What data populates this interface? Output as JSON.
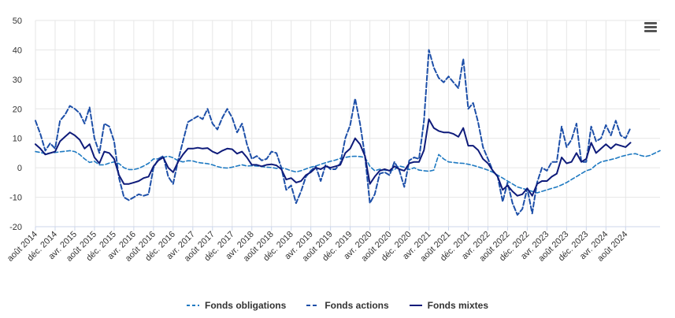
{
  "chart_data": {
    "type": "line",
    "title": "",
    "xlabel": "",
    "ylabel": "",
    "ylim": [
      -20,
      50
    ],
    "yticks": [
      -20,
      -10,
      0,
      10,
      20,
      30,
      40,
      50
    ],
    "grid": true,
    "legend_position": "bottom-center",
    "x_ticks": [
      "août 2014",
      "déc. 2014",
      "avr. 2015",
      "août 2015",
      "déc. 2015",
      "avr. 2016",
      "août 2016",
      "déc. 2016",
      "avr. 2017",
      "août 2017",
      "déc. 2017",
      "avr. 2018",
      "août 2018",
      "déc. 2018",
      "avr. 2019",
      "août 2019",
      "déc. 2019",
      "avr. 2020",
      "août 2020",
      "déc. 2020",
      "avr. 2021",
      "août 2021",
      "déc. 2021",
      "avr. 2022",
      "août 2022",
      "déc. 2022",
      "avr. 2023",
      "août 2023",
      "déc. 2023",
      "avr. 2024",
      "août 2024"
    ],
    "x_start": "août 2014",
    "x_step": "1 month",
    "series": [
      {
        "name": "Fonds obligations",
        "color": "#1f7ac2",
        "dash": "dashed-thin",
        "values": [
          5.5,
          5.2,
          4.8,
          5.0,
          5.2,
          5.4,
          5.6,
          5.8,
          5.5,
          4.5,
          3.0,
          1.8,
          2.2,
          1.0,
          1.0,
          1.6,
          2.0,
          1.4,
          0.0,
          -0.6,
          -0.6,
          -0.2,
          0.6,
          1.5,
          3.0,
          3.0,
          3.5,
          3.9,
          3.4,
          2.4,
          2.0,
          2.4,
          2.3,
          1.8,
          1.6,
          1.4,
          1.0,
          0.4,
          0.0,
          -0.1,
          0.2,
          0.6,
          1.0,
          0.6,
          0.7,
          0.6,
          0.4,
          0.2,
          0.1,
          -0.2,
          0.0,
          -0.4,
          -1.0,
          -1.4,
          -1.0,
          -0.4,
          0.2,
          0.6,
          1.2,
          1.7,
          2.2,
          2.6,
          3.2,
          3.5,
          3.8,
          3.9,
          3.8,
          3.5,
          0.5,
          -1.0,
          -0.5,
          -0.8,
          -1.0,
          -0.6,
          0.6,
          0.2,
          -0.6,
          0.0,
          -0.8,
          -1.0,
          -1.2,
          -0.8,
          4.5,
          3.0,
          2.0,
          1.8,
          1.6,
          1.5,
          1.2,
          0.8,
          0.3,
          -0.2,
          -0.8,
          -1.5,
          -2.5,
          -3.5,
          -4.5,
          -5.5,
          -6.5,
          -7.0,
          -7.5,
          -8.0,
          -8.5,
          -8.0,
          -7.5,
          -7.0,
          -6.5,
          -5.8,
          -5.0,
          -4.0,
          -3.0,
          -2.0,
          -1.0,
          -0.5,
          1.0,
          2.0,
          2.4,
          2.8,
          3.2,
          3.8,
          4.2,
          4.6,
          4.8,
          4.2,
          3.8,
          4.2,
          5.0,
          5.8
        ]
      },
      {
        "name": "Fonds actions",
        "color": "#1d4fa8",
        "dash": "dashed-thick",
        "values": [
          16.0,
          11.5,
          5.8,
          8.3,
          6.5,
          16.0,
          18.0,
          21.0,
          20.0,
          18.5,
          15.0,
          20.5,
          10.0,
          5.0,
          15.0,
          14.0,
          9.0,
          -3.5,
          -10.0,
          -11.0,
          -10.0,
          -9.0,
          -9.5,
          -9.0,
          0.0,
          3.0,
          4.0,
          -3.0,
          -5.5,
          2.5,
          9.0,
          15.5,
          16.5,
          17.5,
          16.5,
          20.0,
          15.0,
          13.0,
          17.0,
          20.0,
          17.0,
          12.0,
          15.0,
          8.0,
          3.0,
          4.0,
          2.5,
          3.0,
          5.5,
          5.0,
          0.0,
          -7.5,
          -6.0,
          -12.0,
          -8.0,
          -3.0,
          -1.0,
          0.5,
          -4.5,
          1.0,
          -0.5,
          -0.5,
          1.5,
          10.0,
          14.5,
          23.5,
          15.0,
          4.0,
          -12.0,
          -9.0,
          -2.0,
          -1.5,
          -2.5,
          2.0,
          -1.0,
          -6.5,
          2.5,
          3.5,
          3.0,
          16.0,
          40.0,
          34.0,
          30.5,
          29.0,
          31.0,
          29.0,
          27.0,
          37.0,
          20.0,
          22.0,
          15.5,
          7.0,
          3.0,
          -1.0,
          -3.0,
          -11.5,
          -5.0,
          -12.0,
          -16.0,
          -14.0,
          -7.0,
          -15.5,
          -5.0,
          0.0,
          -1.0,
          2.0,
          2.0,
          14.0,
          7.0,
          9.5,
          15.0,
          2.0,
          2.0,
          14.0,
          9.0,
          10.0,
          14.5,
          11.0,
          16.0,
          11.0,
          10.0,
          13.5
        ]
      },
      {
        "name": "Fonds mixtes",
        "color": "#0e1b7a",
        "dash": "solid",
        "values": [
          8.0,
          6.5,
          4.5,
          5.0,
          5.5,
          9.0,
          10.5,
          12.0,
          11.0,
          9.5,
          6.5,
          8.0,
          3.5,
          1.5,
          5.5,
          5.0,
          3.0,
          -2.5,
          -5.5,
          -5.5,
          -5.0,
          -4.5,
          -3.5,
          -3.0,
          0.5,
          2.5,
          3.5,
          0.0,
          -1.5,
          2.0,
          4.5,
          6.5,
          6.5,
          6.8,
          6.5,
          6.7,
          5.5,
          4.8,
          5.8,
          6.5,
          6.3,
          4.8,
          5.5,
          3.5,
          1.0,
          1.0,
          0.5,
          1.0,
          1.2,
          0.8,
          -0.5,
          -4.0,
          -3.5,
          -5.0,
          -4.5,
          -2.5,
          -1.5,
          0.0,
          -0.5,
          0.5,
          0.0,
          0.5,
          1.0,
          5.0,
          6.5,
          10.0,
          8.0,
          4.0,
          -5.5,
          -3.0,
          -1.0,
          -0.5,
          -1.0,
          0.5,
          -0.5,
          -1.0,
          1.5,
          2.0,
          2.0,
          6.0,
          16.5,
          13.5,
          12.5,
          12.0,
          12.0,
          11.5,
          10.5,
          13.5,
          7.5,
          7.5,
          6.0,
          3.0,
          1.5,
          -1.0,
          -3.0,
          -7.5,
          -6.0,
          -8.0,
          -9.5,
          -9.0,
          -7.0,
          -9.5,
          -5.5,
          -4.5,
          -4.5,
          -3.0,
          -2.0,
          3.5,
          1.5,
          2.0,
          5.0,
          2.0,
          3.0,
          8.5,
          5.0,
          6.5,
          8.0,
          6.5,
          8.0,
          7.5,
          7.0,
          8.5
        ]
      }
    ]
  },
  "menu": {
    "icon": "hamburger-menu-icon"
  }
}
